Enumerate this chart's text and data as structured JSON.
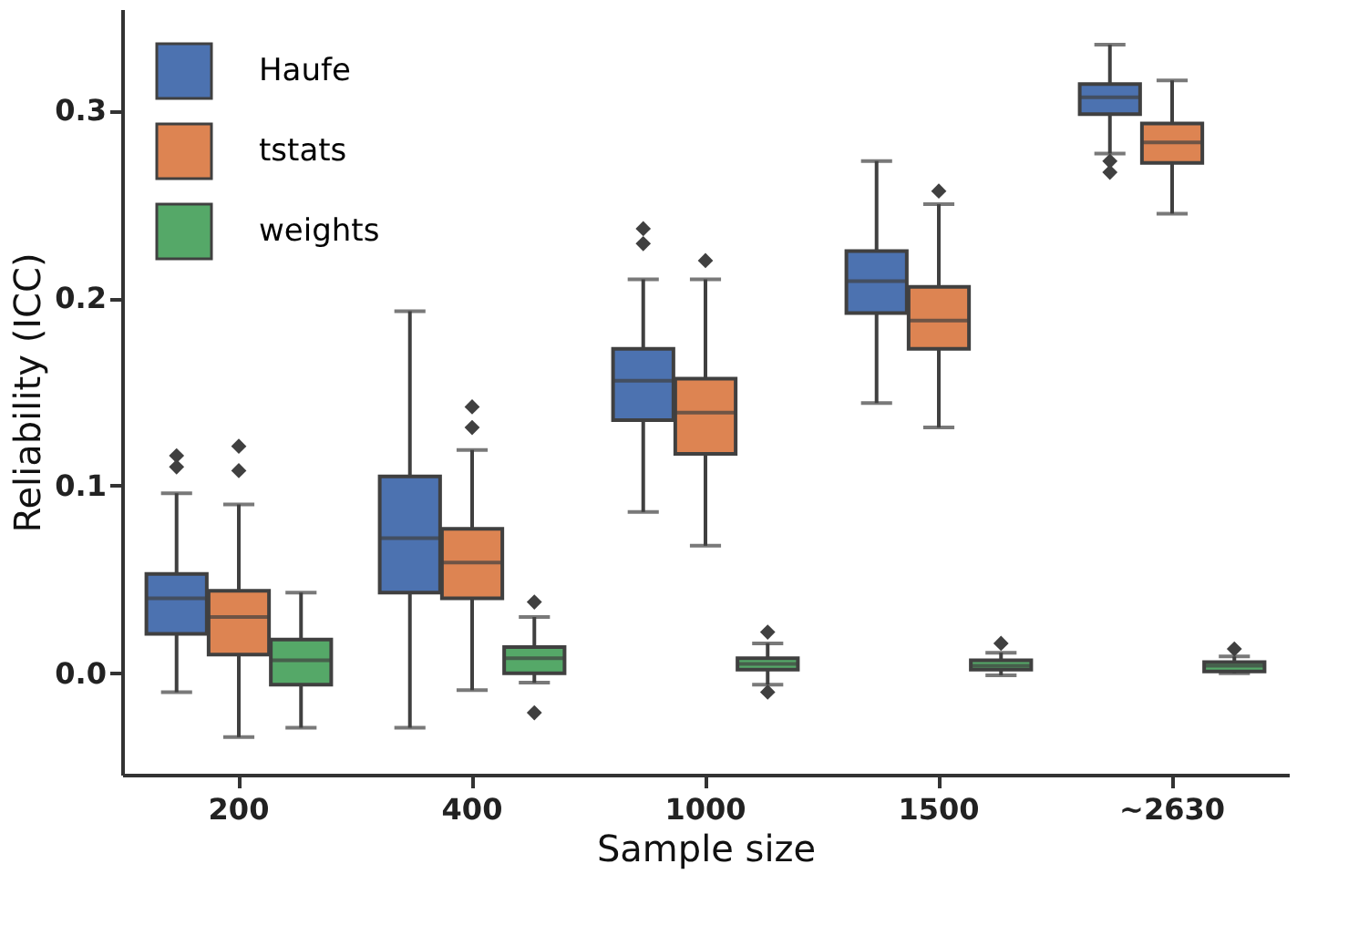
{
  "chart_data": {
    "type": "box",
    "xlabel": "Sample size",
    "ylabel": "Reliability (ICC)",
    "categories": [
      "200",
      "400",
      "1000",
      "1500",
      "~2630"
    ],
    "series": [
      {
        "name": "Haufe",
        "color": "#4c72b0",
        "boxes": [
          {
            "low": -0.01,
            "q1": 0.021,
            "median": 0.04,
            "q3": 0.053,
            "high": 0.096,
            "outliers": [
              0.11,
              0.116
            ]
          },
          {
            "low": -0.029,
            "q1": 0.043,
            "median": 0.072,
            "q3": 0.105,
            "high": 0.193
          },
          {
            "low": 0.086,
            "q1": 0.135,
            "median": 0.156,
            "q3": 0.173,
            "high": 0.21,
            "outliers": [
              0.229,
              0.237
            ]
          },
          {
            "low": 0.144,
            "q1": 0.192,
            "median": 0.209,
            "q3": 0.225,
            "high": 0.273
          },
          {
            "low": 0.277,
            "q1": 0.298,
            "median": 0.307,
            "q3": 0.314,
            "high": 0.335,
            "outliers": [
              0.273,
              0.267
            ]
          }
        ]
      },
      {
        "name": "tstats",
        "color": "#dd8452",
        "boxes": [
          {
            "low": -0.034,
            "q1": 0.01,
            "median": 0.03,
            "q3": 0.044,
            "high": 0.09,
            "outliers": [
              0.108,
              0.121
            ]
          },
          {
            "low": -0.009,
            "q1": 0.04,
            "median": 0.059,
            "q3": 0.077,
            "high": 0.119,
            "outliers": [
              0.131,
              0.142
            ]
          },
          {
            "low": 0.068,
            "q1": 0.117,
            "median": 0.139,
            "q3": 0.157,
            "high": 0.21,
            "outliers": [
              0.22
            ]
          },
          {
            "low": 0.131,
            "q1": 0.173,
            "median": 0.188,
            "q3": 0.206,
            "high": 0.25,
            "outliers": [
              0.257
            ]
          },
          {
            "low": 0.245,
            "q1": 0.272,
            "median": 0.283,
            "q3": 0.293,
            "high": 0.316
          }
        ]
      },
      {
        "name": "weights",
        "color": "#55a868",
        "boxes": [
          {
            "low": -0.029,
            "q1": -0.006,
            "median": 0.007,
            "q3": 0.018,
            "high": 0.043
          },
          {
            "low": -0.005,
            "q1": 0.0,
            "median": 0.008,
            "q3": 0.014,
            "high": 0.03,
            "outliers": [
              0.038,
              -0.021
            ]
          },
          {
            "low": -0.006,
            "q1": 0.002,
            "median": 0.005,
            "q3": 0.008,
            "high": 0.016,
            "outliers": [
              0.022,
              -0.01
            ]
          },
          {
            "low": -0.001,
            "q1": 0.002,
            "median": 0.004,
            "q3": 0.007,
            "high": 0.011,
            "outliers": [
              0.016
            ]
          },
          {
            "low": 0.0,
            "q1": 0.001,
            "median": 0.004,
            "q3": 0.006,
            "high": 0.009,
            "outliers": [
              0.013
            ]
          }
        ]
      }
    ],
    "ylim": [
      -0.054,
      0.354
    ],
    "yticks": [
      {
        "value": 0,
        "label": "0.0"
      },
      0.1,
      0.2,
      0.3
    ],
    "legend": "top left",
    "grid": false,
    "marker": "diamond"
  }
}
